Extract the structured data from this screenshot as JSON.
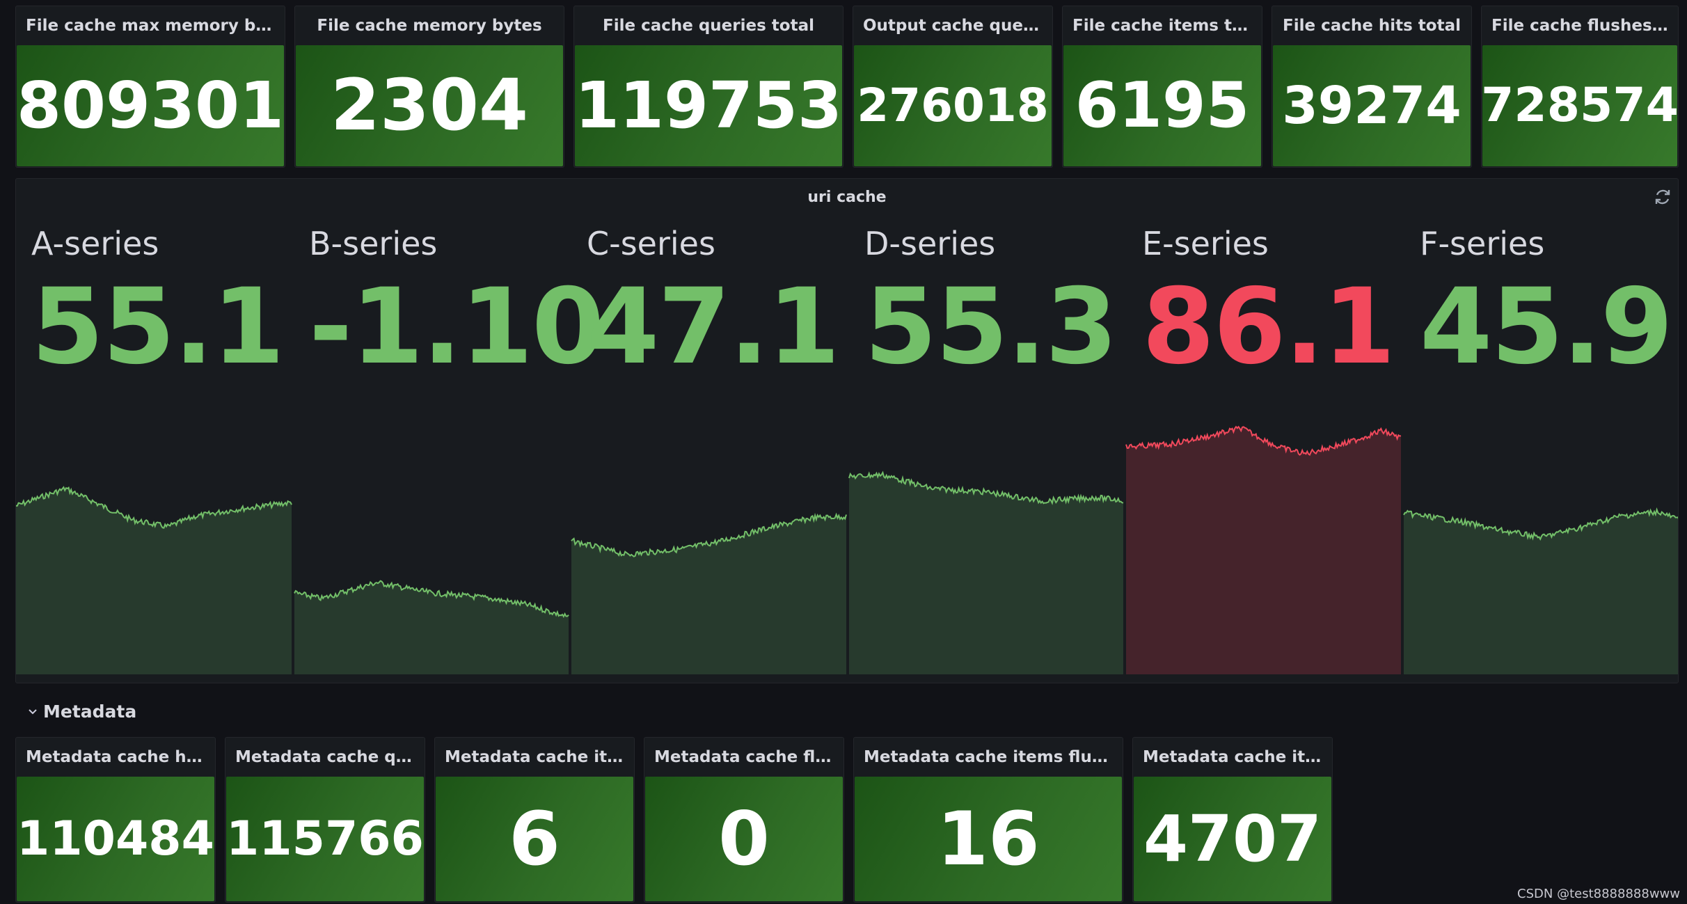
{
  "top_stats": [
    {
      "title": "File cache max memory bytes",
      "value": "809301"
    },
    {
      "title": "File cache memory bytes",
      "value": "2304"
    },
    {
      "title": "File cache queries total",
      "value": "119753"
    },
    {
      "title": "Output cache querie...",
      "value": "276018"
    },
    {
      "title": "File cache items total",
      "value": "6195"
    },
    {
      "title": "File cache hits total",
      "value": "39274"
    },
    {
      "title": "File cache flushes t...",
      "value": "728574"
    }
  ],
  "uri_panel": {
    "title": "uri cache",
    "series": [
      {
        "name": "A-series",
        "value": "55.1",
        "color": "#73bf69",
        "fill": "#273a2d"
      },
      {
        "name": "B-series",
        "value": "-1.10",
        "color": "#73bf69",
        "fill": "#273a2d"
      },
      {
        "name": "C-series",
        "value": "47.1",
        "color": "#73bf69",
        "fill": "#273a2d"
      },
      {
        "name": "D-series",
        "value": "55.3",
        "color": "#73bf69",
        "fill": "#273a2d"
      },
      {
        "name": "E-series",
        "value": "86.1",
        "color": "#f2495c",
        "fill": "#45232b"
      },
      {
        "name": "F-series",
        "value": "45.9",
        "color": "#73bf69",
        "fill": "#273a2d"
      }
    ]
  },
  "row": {
    "title": "Metadata"
  },
  "metadata_stats": [
    {
      "title": "Metadata cache hit...",
      "value": "110484"
    },
    {
      "title": "Metadata cache qu...",
      "value": "115766"
    },
    {
      "title": "Metadata cache ite...",
      "value": "6"
    },
    {
      "title": "Metadata cache flu...",
      "value": "0"
    },
    {
      "title": "Metadata cache items flushe...",
      "value": "16"
    },
    {
      "title": "Metadata cache ite...",
      "value": "4707"
    }
  ],
  "watermark": "CSDN @test8888888www"
}
